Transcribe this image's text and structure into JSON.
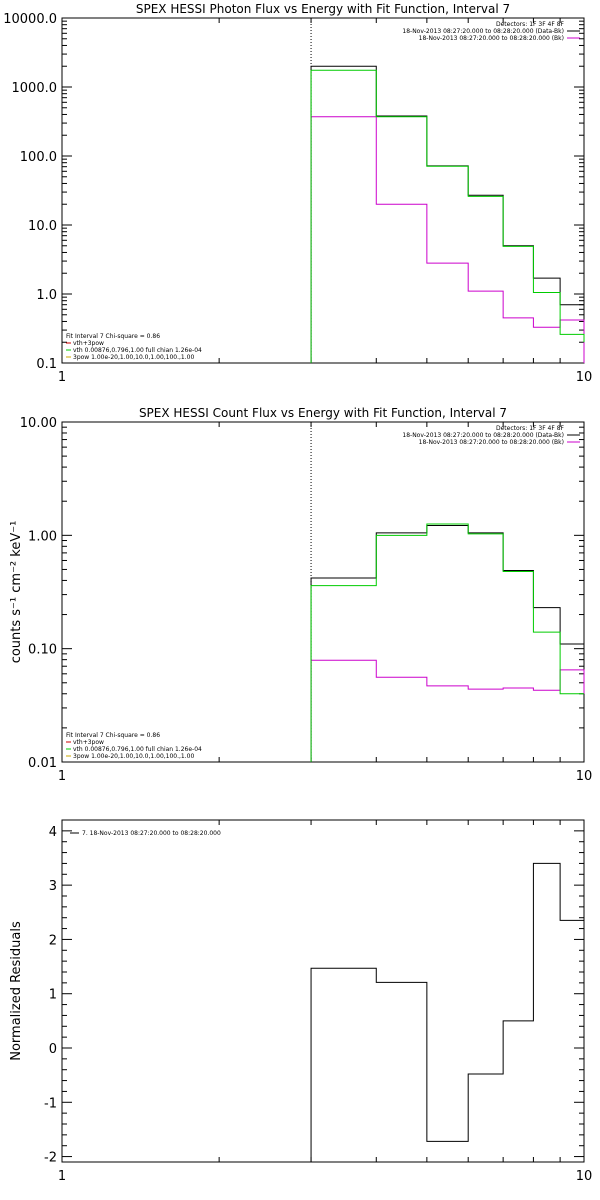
{
  "chart_data": [
    {
      "type": "line",
      "title": "SPEX HESSI Photon Flux vs Energy with Fit Function, Interval 7",
      "xlabel": "",
      "ylabel": "",
      "xscale": "log",
      "yscale": "log",
      "xlim": [
        1,
        10
      ],
      "ylim": [
        0.1,
        10000
      ],
      "x_ticks": [
        "1",
        "10"
      ],
      "y_ticks": [
        "10000.0",
        "1000.0",
        "100.0",
        "10.0",
        "1.0",
        "0.1"
      ],
      "vline_x": 3,
      "legend_top_right": [
        {
          "label": "Detectors: 1F 3F 4F 8F",
          "color": null
        },
        {
          "label": "18-Nov-2013 08:27:20.000 to 08:28:20.000 (Data-Bk)",
          "color": "#000000"
        },
        {
          "label": "18-Nov-2013 08:27:20.000 to 08:28:20.000 (Bk)",
          "color": "#cc00cc"
        }
      ],
      "legend_bottom_left": [
        {
          "label": "Fit Interval 7   Chi-square = 0.86",
          "color": null
        },
        {
          "label": "vth+3pow",
          "color": "#cc0000"
        },
        {
          "label": "vth 0.00876,0.796,1.00  full chian 1.26e-04",
          "color": "#00cc00"
        },
        {
          "label": "3pow 1.00e-20,1.00,10.0,1.00,100.,1.00",
          "color": "#ccaa00"
        }
      ],
      "bin_edges": [
        3,
        4,
        5,
        6,
        7,
        8,
        9,
        10
      ],
      "series": [
        {
          "name": "Data-Bk",
          "color": "#000000",
          "values": [
            2000,
            380,
            72,
            27,
            5,
            1.7,
            0.7
          ]
        },
        {
          "name": "Bk",
          "color": "#cc00cc",
          "values": [
            370,
            20,
            2.8,
            1.1,
            0.45,
            0.33,
            0.42
          ]
        },
        {
          "name": "vth+3pow",
          "color": "#00cc00",
          "values": [
            1750,
            370,
            71,
            26,
            4.9,
            1.05,
            0.26
          ]
        }
      ],
      "trail": [
        0.12,
        0.05,
        0.2
      ]
    },
    {
      "type": "line",
      "title": "SPEX HESSI Count Flux vs Energy with Fit Function, Interval 7",
      "xlabel": "",
      "ylabel": "counts s⁻¹ cm⁻² keV⁻¹",
      "xscale": "log",
      "yscale": "log",
      "xlim": [
        1,
        10
      ],
      "ylim": [
        0.01,
        10
      ],
      "x_ticks": [
        "1",
        "10"
      ],
      "y_ticks": [
        "10.00",
        "1.00",
        "0.10",
        "0.01"
      ],
      "vline_x": 3,
      "legend_top_right": [
        {
          "label": "Detectors: 1F 3F 4F 8F",
          "color": null
        },
        {
          "label": "18-Nov-2013 08:27:20.000 to 08:28:20.000 (Data-Bk)",
          "color": "#000000"
        },
        {
          "label": "18-Nov-2013 08:27:20.000 to 08:28:20.000 (Bk)",
          "color": "#cc00cc"
        }
      ],
      "legend_bottom_left": [
        {
          "label": "Fit Interval 7   Chi-square = 0.86",
          "color": null
        },
        {
          "label": "vth+3pow",
          "color": "#cc0000"
        },
        {
          "label": "vth 0.00876,0.796,1.00  full chian 1.26e-04",
          "color": "#00cc00"
        },
        {
          "label": "3pow 1.00e-20,1.00,10.0,1.00,100.,1.00",
          "color": "#ccaa00"
        }
      ],
      "bin_edges": [
        3,
        4,
        5,
        6,
        7,
        8,
        9,
        10
      ],
      "series": [
        {
          "name": "Data-Bk",
          "color": "#000000",
          "values": [
            0.42,
            1.05,
            1.22,
            1.05,
            0.49,
            0.23,
            0.11
          ]
        },
        {
          "name": "Bk",
          "color": "#cc00cc",
          "values": [
            0.079,
            0.056,
            0.047,
            0.044,
            0.045,
            0.043,
            0.065
          ]
        },
        {
          "name": "vth+3pow",
          "color": "#00cc00",
          "values": [
            0.36,
            1.0,
            1.26,
            1.03,
            0.48,
            0.14,
            0.04
          ]
        }
      ],
      "trail": [
        0.015,
        0.04,
        0.04
      ]
    },
    {
      "type": "line",
      "title": "",
      "xlabel": "",
      "ylabel": "Normalized Residuals",
      "xscale": "log",
      "yscale": "linear",
      "xlim": [
        1,
        10
      ],
      "ylim": [
        -2.1,
        4.2
      ],
      "x_ticks": [
        "1",
        "10"
      ],
      "y_ticks": [
        "4",
        "3",
        "2",
        "1",
        "0",
        "-1",
        "-2"
      ],
      "legend_top_left": [
        {
          "label": "7. 18-Nov-2013 08:27:20.000 to 08:28:20.000",
          "color": "#000000"
        }
      ],
      "bin_edges": [
        3,
        4,
        5,
        6,
        7,
        8,
        9,
        10
      ],
      "series": [
        {
          "name": "7. 18-Nov-2013 08:27:20.000 to 08:28:20.000",
          "color": "#000000",
          "values": [
            1.47,
            1.21,
            -1.72,
            -0.48,
            0.5,
            3.4,
            2.35
          ]
        }
      ]
    }
  ]
}
